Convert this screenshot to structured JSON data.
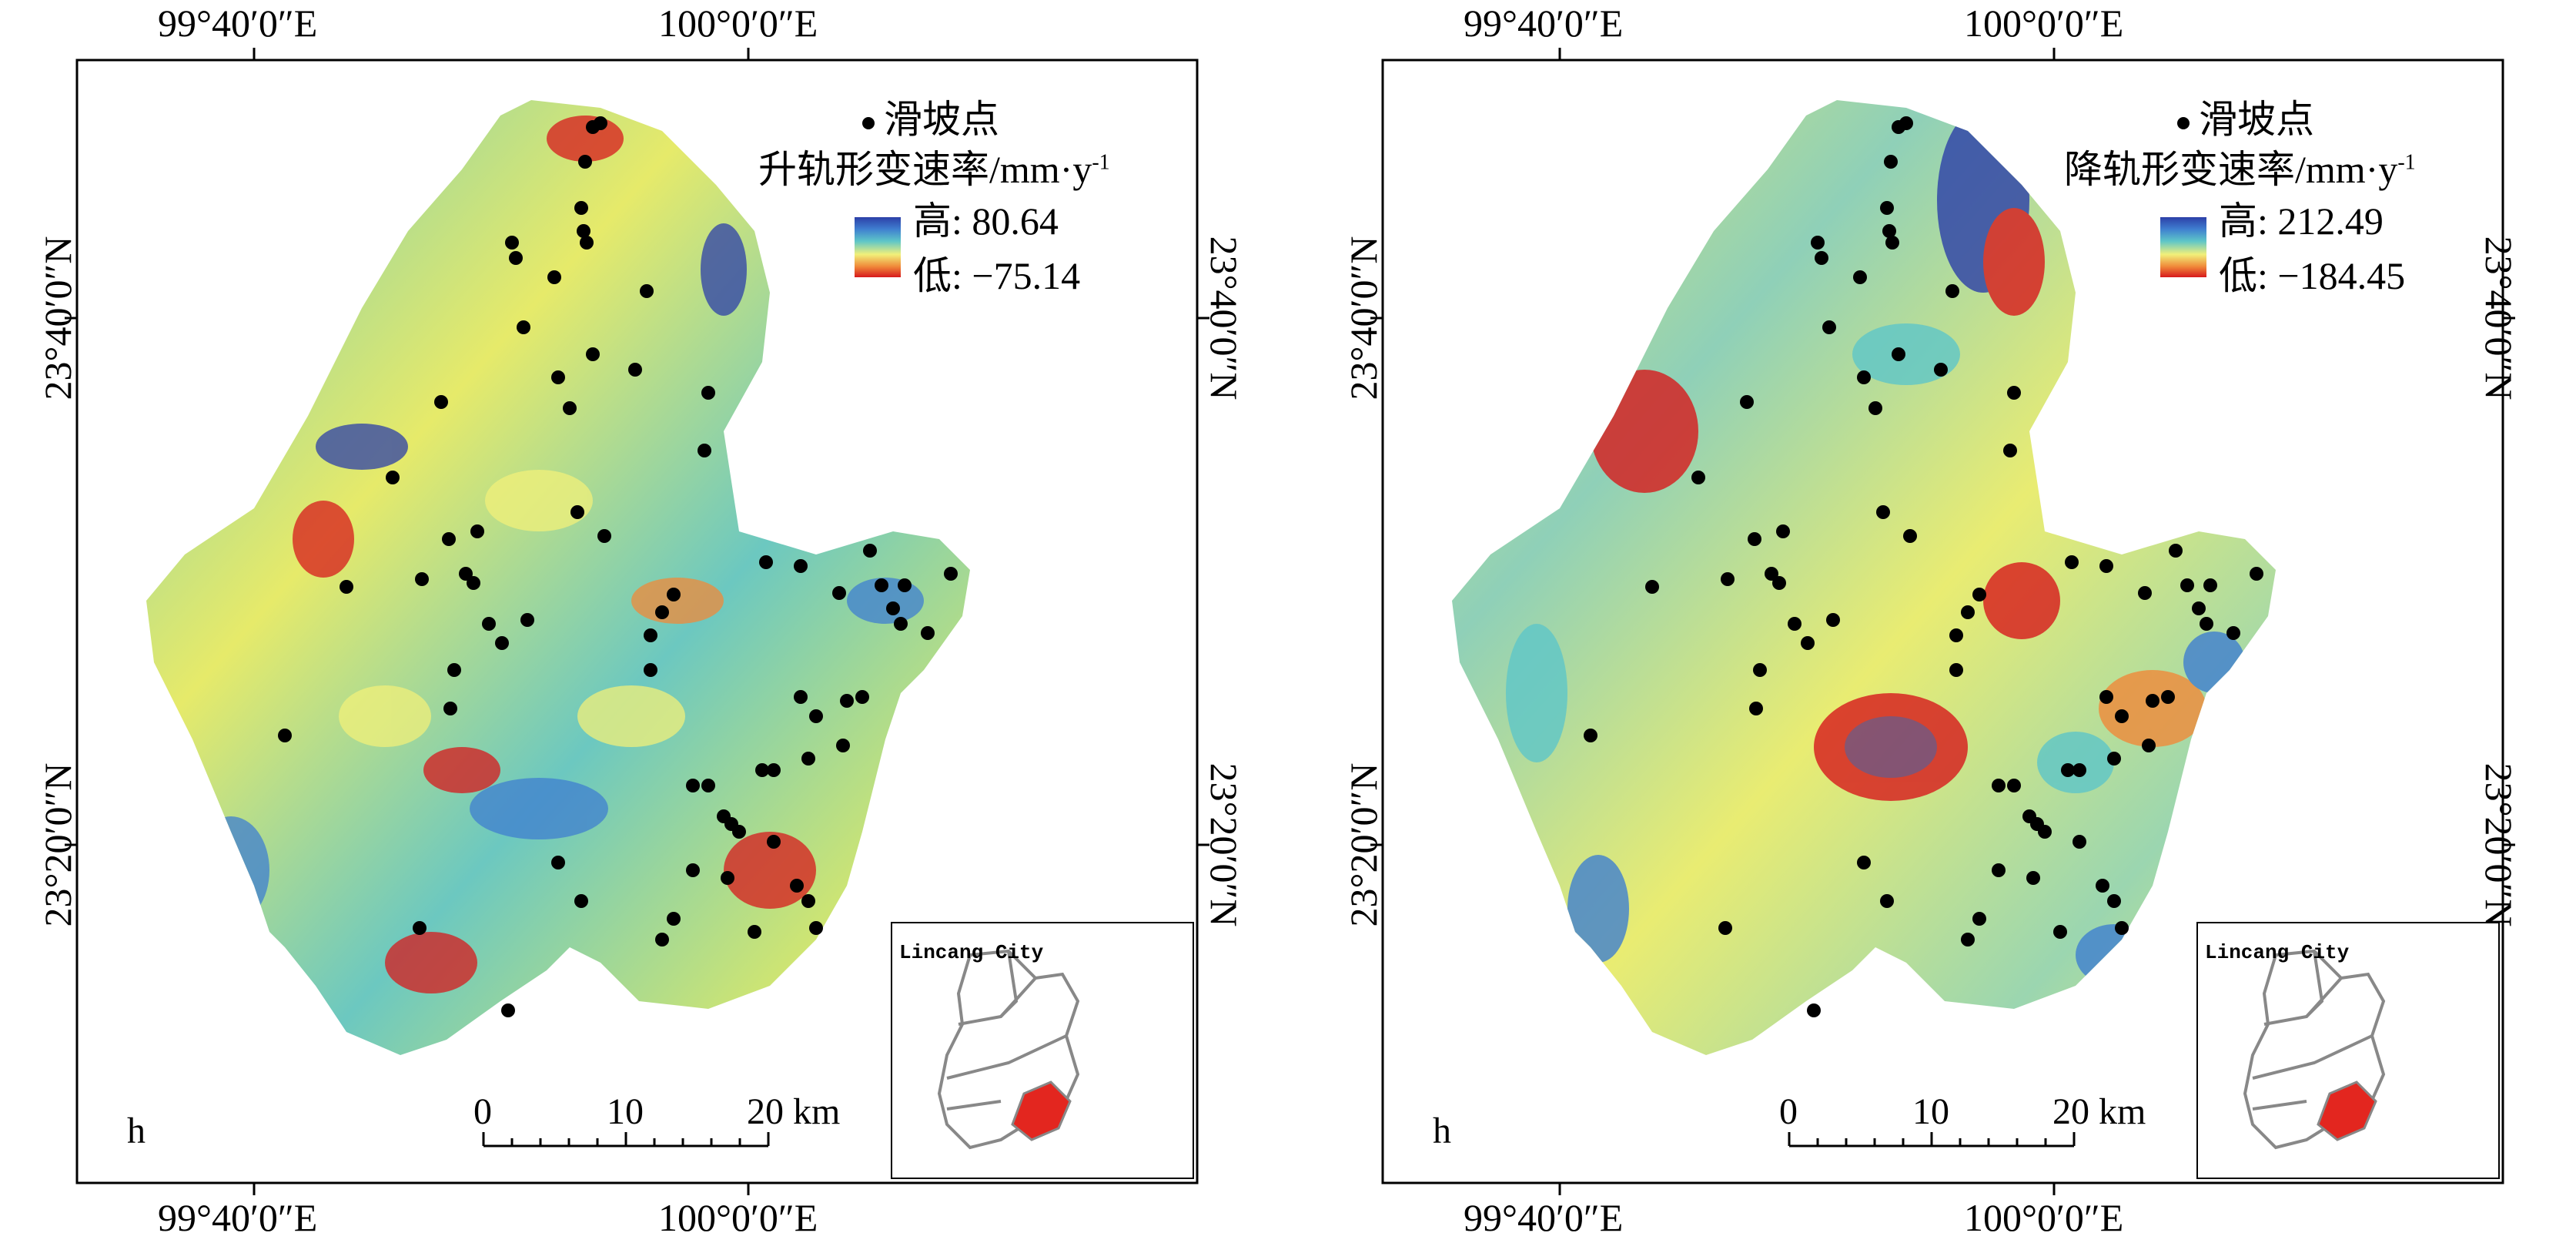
{
  "maps": [
    {
      "panel_id": "ascending",
      "panel_letter": "h",
      "top_lon_labels": [
        "99°40′0″E",
        "100°0′0″E"
      ],
      "bottom_lon_labels": [
        "99°40′0″E",
        "100°0′0″E"
      ],
      "left_lat_labels": [
        "23°40′0″N",
        "23°20′0″N"
      ],
      "right_lat_labels": [
        "23°40′0″N",
        "23°20′0″N"
      ],
      "legend": {
        "point_label": "滑坡点",
        "rate_title": "升轨形变速率/mm·y",
        "rate_unit_sup": "-1",
        "high_label": "高: 80.64",
        "low_label": "低: −75.14"
      },
      "scale_bar": {
        "ticks": [
          "0",
          "10",
          "20 km"
        ]
      },
      "inset_title": "Lincang City"
    },
    {
      "panel_id": "descending",
      "panel_letter": "h",
      "top_lon_labels": [
        "99°40′0″E",
        "100°0′0″E"
      ],
      "bottom_lon_labels": [
        "99°40′0″E",
        "100°0′0″E"
      ],
      "left_lat_labels": [
        "23°40′0″N",
        "23°20′0″N"
      ],
      "right_lat_labels": [
        "23°40′0″N",
        "23°20′0″N"
      ],
      "legend": {
        "point_label": "滑坡点",
        "rate_title": "降轨形变速率/mm·y",
        "rate_unit_sup": "-1",
        "high_label": "高: 212.49",
        "low_label": "低: −184.45"
      },
      "scale_bar": {
        "ticks": [
          "0",
          "10",
          "20 km"
        ]
      },
      "inset_title": "Lincang City"
    }
  ],
  "colors": {
    "high": "#2c3fa8",
    "mid_high": "#5ec6c8",
    "mid": "#f1f07a",
    "low": "#d7191c",
    "landslide_point": "#000000",
    "inset_highlight": "#e3261f"
  },
  "icons": [
    "landslide-point-icon",
    "color-ramp",
    "scale-bar",
    "inset-locator-map"
  ]
}
